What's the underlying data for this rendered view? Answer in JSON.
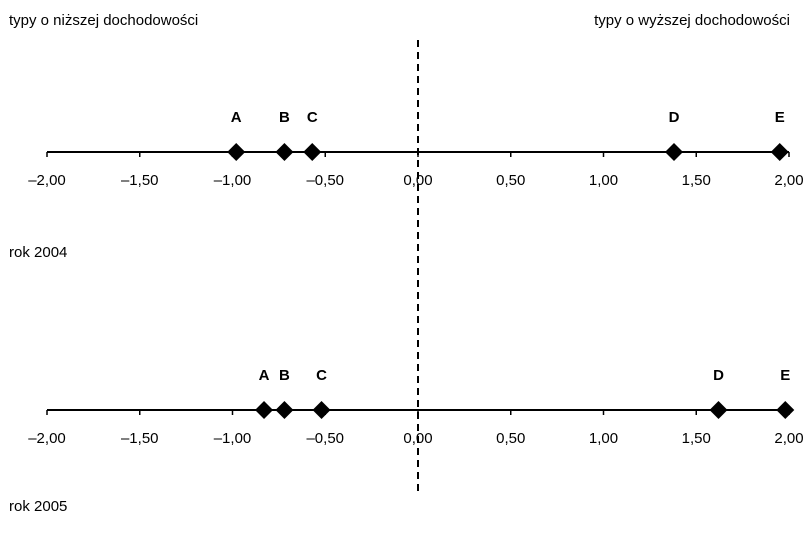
{
  "header": {
    "left_label": "typy o niższej dochodowości",
    "right_label": "typy o wyższej dochodowości"
  },
  "chart_data": [
    {
      "type": "scatter",
      "caption": "rok 2004",
      "xlim": [
        -2.0,
        2.0
      ],
      "ticks": [
        "–2,00",
        "–1,50",
        "–1,00",
        "–0,50",
        "0,00",
        "0,50",
        "1,00",
        "1,50",
        "2,00"
      ],
      "tick_values": [
        -2.0,
        -1.5,
        -1.0,
        -0.5,
        0.0,
        0.5,
        1.0,
        1.5,
        2.0
      ],
      "reference_line": 0.0,
      "points": [
        {
          "label": "A",
          "x": -0.98
        },
        {
          "label": "B",
          "x": -0.72
        },
        {
          "label": "C",
          "x": -0.57
        },
        {
          "label": "D",
          "x": 1.38
        },
        {
          "label": "E",
          "x": 1.95
        }
      ],
      "marker_color": "#000000"
    },
    {
      "type": "scatter",
      "caption": "rok 2005",
      "xlim": [
        -2.0,
        2.0
      ],
      "ticks": [
        "–2,00",
        "–1,50",
        "–1,00",
        "–0,50",
        "0,00",
        "0,50",
        "1,00",
        "1,50",
        "2,00"
      ],
      "tick_values": [
        -2.0,
        -1.5,
        -1.0,
        -0.5,
        0.0,
        0.5,
        1.0,
        1.5,
        2.0
      ],
      "reference_line": 0.0,
      "points": [
        {
          "label": "A",
          "x": -0.83
        },
        {
          "label": "B",
          "x": -0.72
        },
        {
          "label": "C",
          "x": -0.52
        },
        {
          "label": "D",
          "x": 1.62
        },
        {
          "label": "E",
          "x": 1.98
        }
      ],
      "marker_color": "#000000"
    }
  ]
}
